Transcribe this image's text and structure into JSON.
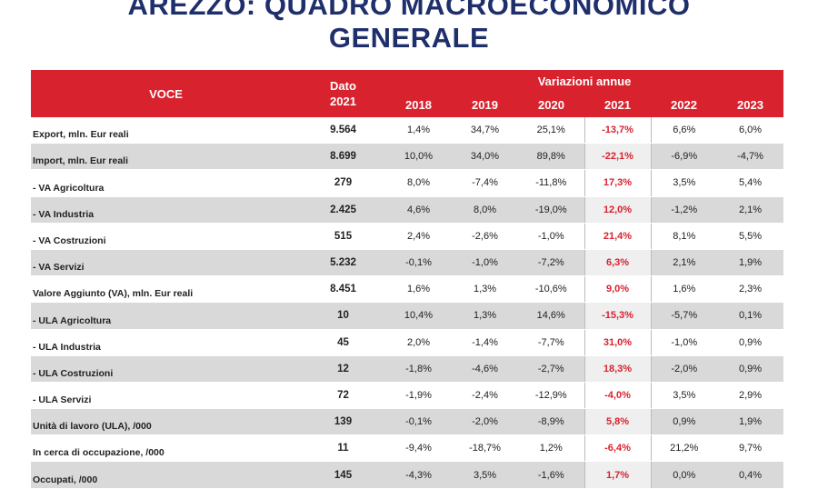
{
  "title_line1": "AREZZO: QUADRO MACROECONOMICO",
  "title_line2": "GENERALE",
  "headers": {
    "voce": "VOCE",
    "dato_line1": "Dato",
    "dato_line2": "2021",
    "variazioni": "Variazioni annue",
    "years": [
      "2018",
      "2019",
      "2020",
      "2021",
      "2022",
      "2023"
    ]
  },
  "rows": [
    {
      "label": "Export, mln. Eur reali",
      "dato": "9.564",
      "v": [
        "1,4%",
        "34,7%",
        "25,1%",
        "-13,7%",
        "6,6%",
        "6,0%"
      ]
    },
    {
      "label": "Import, mln. Eur reali",
      "dato": "8.699",
      "v": [
        "10,0%",
        "34,0%",
        "89,8%",
        "-22,1%",
        "-6,9%",
        "-4,7%"
      ]
    },
    {
      "label": " - VA Agricoltura",
      "dato": "279",
      "v": [
        "8,0%",
        "-7,4%",
        "-11,8%",
        "17,3%",
        "3,5%",
        "5,4%"
      ]
    },
    {
      "label": " - VA Industria",
      "dato": "2.425",
      "v": [
        "4,6%",
        "8,0%",
        "-19,0%",
        "12,0%",
        "-1,2%",
        "2,1%"
      ]
    },
    {
      "label": " - VA Costruzioni",
      "dato": "515",
      "v": [
        "2,4%",
        "-2,6%",
        "-1,0%",
        "21,4%",
        "8,1%",
        "5,5%"
      ]
    },
    {
      "label": " - VA Servizi",
      "dato": "5.232",
      "v": [
        "-0,1%",
        "-1,0%",
        "-7,2%",
        "6,3%",
        "2,1%",
        "1,9%"
      ]
    },
    {
      "label": "Valore Aggiunto (VA), mln. Eur reali",
      "dato": "8.451",
      "v": [
        "1,6%",
        "1,3%",
        "-10,6%",
        "9,0%",
        "1,6%",
        "2,3%"
      ]
    },
    {
      "label": " - ULA Agricoltura",
      "dato": "10",
      "v": [
        "10,4%",
        "1,3%",
        "14,6%",
        "-15,3%",
        "-5,7%",
        "0,1%"
      ]
    },
    {
      "label": " - ULA Industria",
      "dato": "45",
      "v": [
        "2,0%",
        "-1,4%",
        "-7,7%",
        "31,0%",
        "-1,0%",
        "0,9%"
      ]
    },
    {
      "label": " - ULA Costruzioni",
      "dato": "12",
      "v": [
        "-1,8%",
        "-4,6%",
        "-2,7%",
        "18,3%",
        "-2,0%",
        "0,9%"
      ]
    },
    {
      "label": " - ULA Servizi",
      "dato": "72",
      "v": [
        "-1,9%",
        "-2,4%",
        "-12,9%",
        "-4,0%",
        "3,5%",
        "2,9%"
      ]
    },
    {
      "label": "Unità di lavoro (ULA), /000",
      "dato": "139",
      "v": [
        "-0,1%",
        "-2,0%",
        "-8,9%",
        "5,8%",
        "0,9%",
        "1,9%"
      ]
    },
    {
      "label": "In cerca di occupazione, /000",
      "dato": "11",
      "v": [
        "-9,4%",
        "-18,7%",
        "1,2%",
        "-6,4%",
        "21,2%",
        "9,7%"
      ]
    },
    {
      "label": "Occupati, /000",
      "dato": "145",
      "v": [
        "-4,3%",
        "3,5%",
        "-1,6%",
        "1,7%",
        "0,0%",
        "0,4%"
      ]
    }
  ],
  "colors": {
    "header_red": "#d8232f",
    "title_blue": "#1f2f6b",
    "stripe_gray": "#d9d9d9",
    "highlight_red": "#d8232f"
  }
}
